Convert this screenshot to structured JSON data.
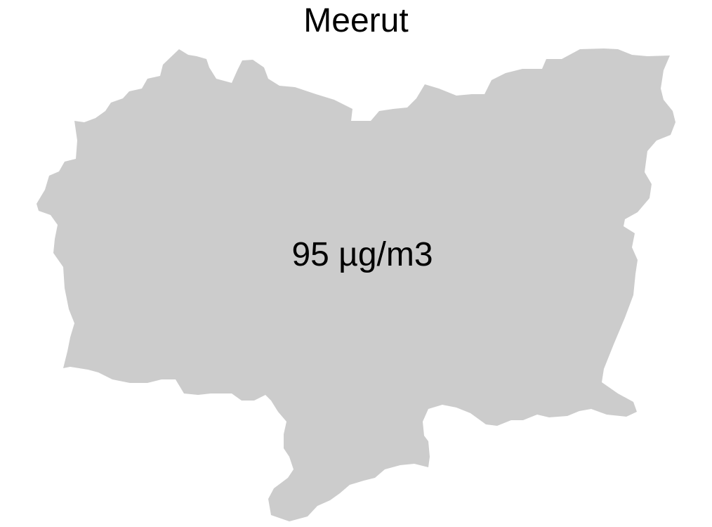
{
  "map": {
    "title": "Meerut",
    "region_value_label": "95 µg/m3",
    "region_fill": "#cccccc",
    "label_color": "#000000",
    "background": "#ffffff"
  }
}
